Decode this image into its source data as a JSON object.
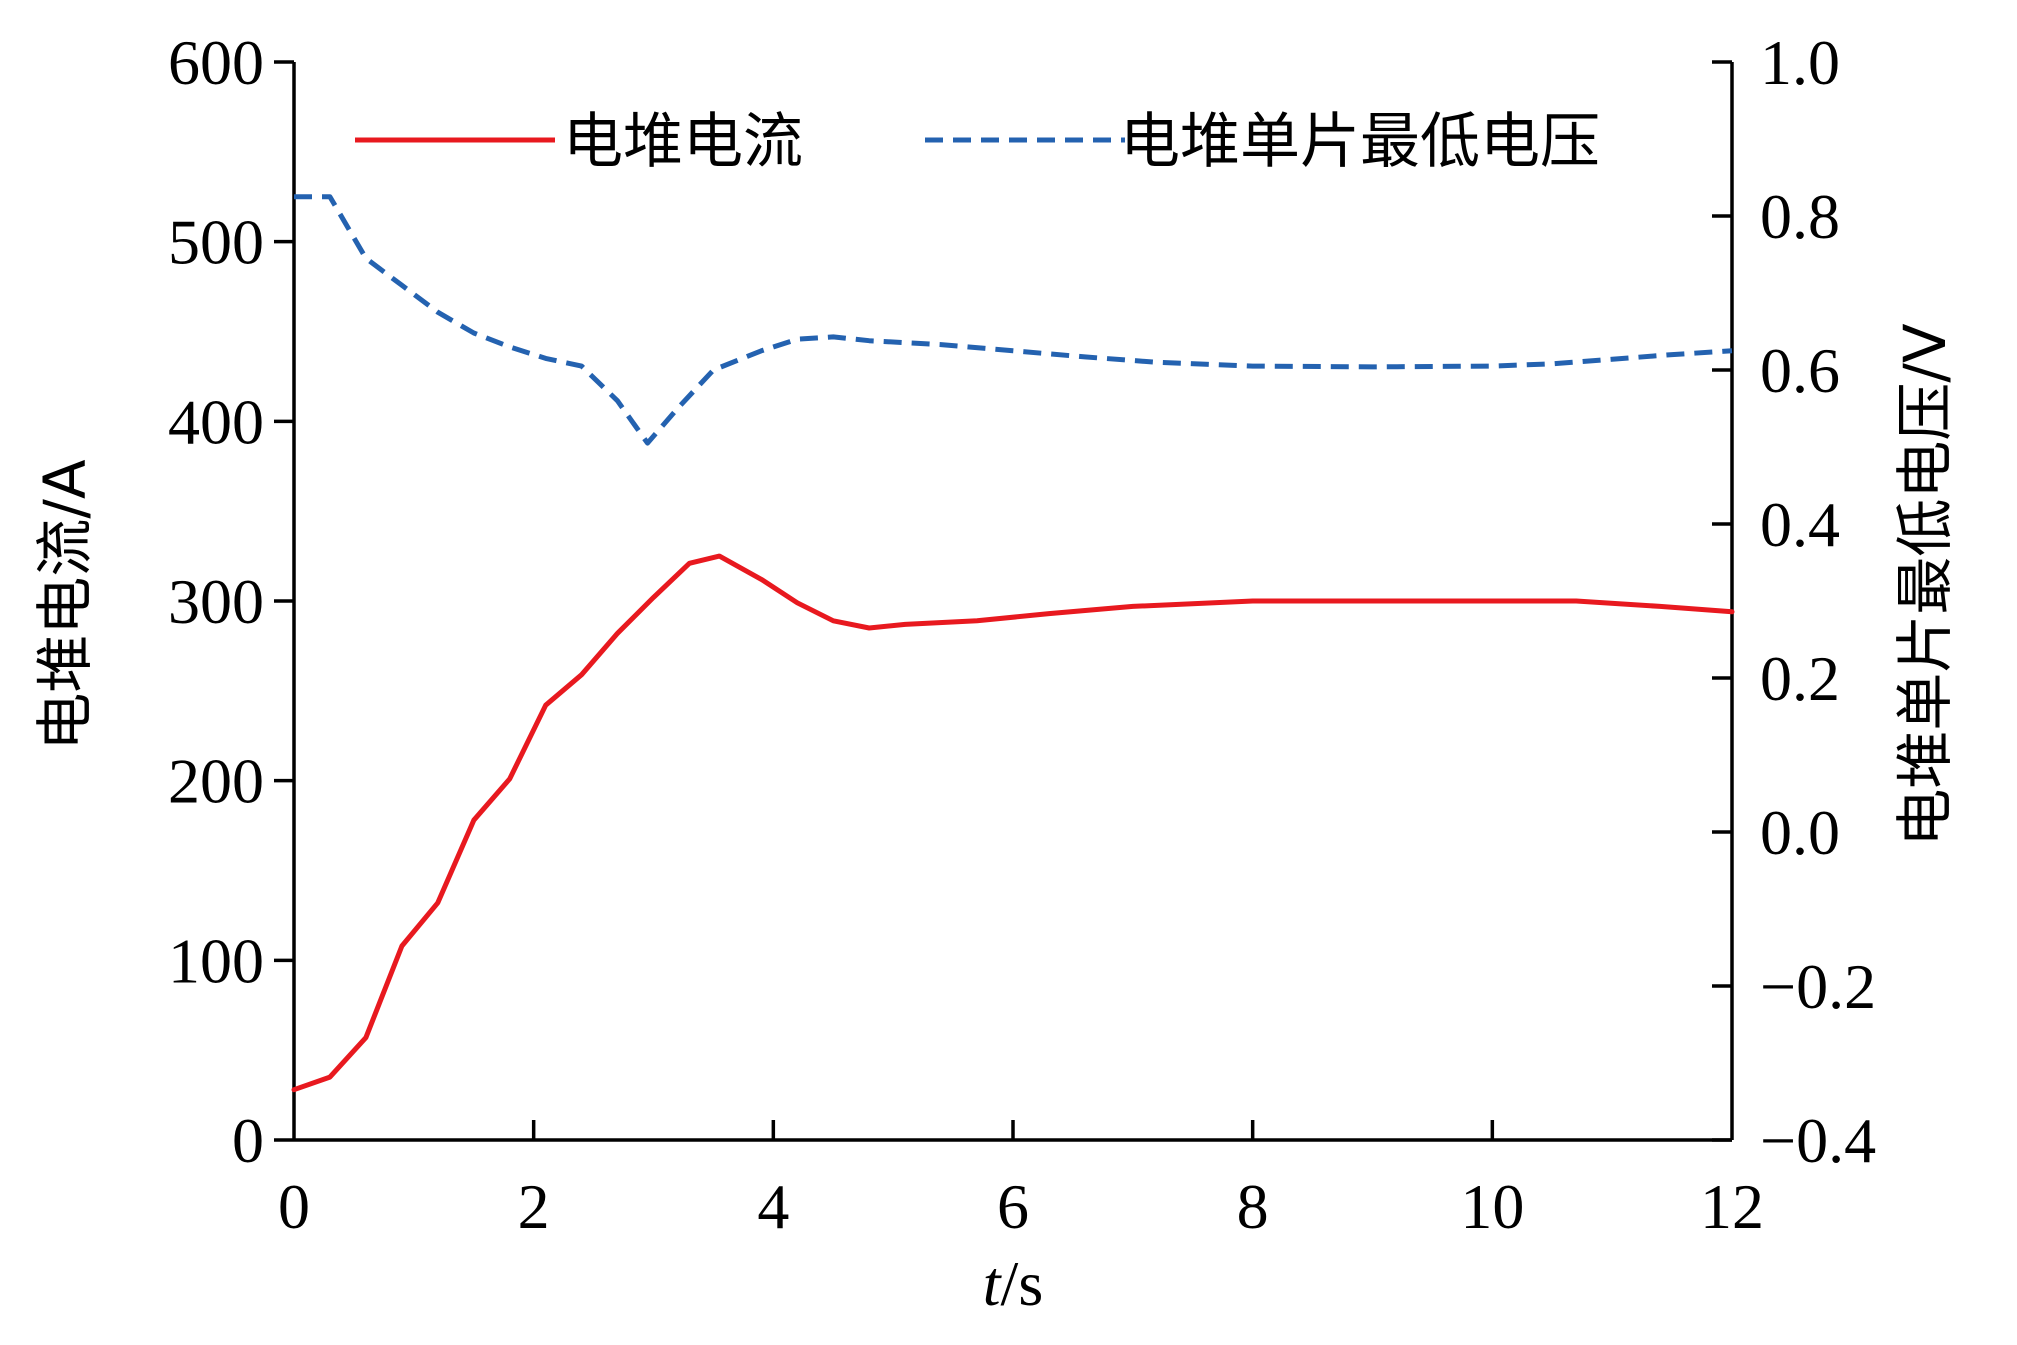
{
  "chart_data": {
    "type": "line",
    "x_label": "t/s",
    "y_left_label": "电堆电流/A",
    "y_right_label": "电堆单片最低电压/V",
    "x_ticks": [
      0,
      2,
      4,
      6,
      8,
      10,
      12
    ],
    "y_left_ticks": [
      0,
      100,
      200,
      300,
      400,
      500,
      600
    ],
    "y_right_ticks": [
      "−0.4",
      "−0.2",
      "0.0",
      "0.2",
      "0.4",
      "0.6",
      "0.8",
      "1.0"
    ],
    "xlim": [
      0,
      12
    ],
    "y_left_lim": [
      0,
      600
    ],
    "y_right_lim": [
      -0.4,
      1.0
    ],
    "legend_position": "top",
    "series": [
      {
        "name": "电堆电流",
        "axis": "left",
        "color": "#e8191f",
        "style": "solid",
        "x": [
          0,
          0.3,
          0.6,
          0.9,
          1.2,
          1.5,
          1.8,
          2.1,
          2.4,
          2.7,
          3.0,
          3.3,
          3.55,
          3.9,
          4.2,
          4.5,
          4.8,
          5.1,
          5.7,
          6.3,
          7.0,
          8.0,
          9.0,
          10.0,
          10.7,
          11.4,
          12.0
        ],
        "y": [
          28,
          35,
          57,
          108,
          132,
          178,
          201,
          242,
          259,
          282,
          302,
          321,
          325,
          312,
          299,
          289,
          285,
          287,
          289,
          293,
          297,
          300,
          300,
          300,
          300,
          297,
          294
        ]
      },
      {
        "name": "电堆单片最低电压",
        "axis": "right",
        "color": "#2462b0",
        "style": "dashed",
        "x": [
          0,
          0.3,
          0.6,
          0.9,
          1.2,
          1.5,
          1.8,
          2.1,
          2.4,
          2.7,
          2.95,
          3.2,
          3.5,
          3.9,
          4.2,
          4.5,
          4.8,
          5.4,
          6.0,
          6.6,
          7.2,
          8.0,
          9.0,
          10.0,
          10.5,
          11.0,
          11.5,
          12.0
        ],
        "y": [
          0.825,
          0.825,
          0.745,
          0.71,
          0.675,
          0.648,
          0.63,
          0.615,
          0.605,
          0.56,
          0.505,
          0.55,
          0.6,
          0.625,
          0.64,
          0.643,
          0.638,
          0.633,
          0.625,
          0.617,
          0.61,
          0.605,
          0.604,
          0.605,
          0.608,
          0.614,
          0.62,
          0.625
        ]
      }
    ]
  }
}
